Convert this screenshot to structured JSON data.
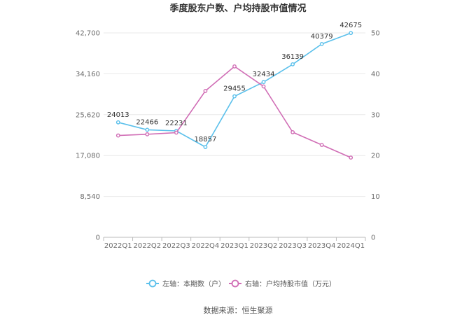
{
  "chart_data": {
    "type": "line",
    "title": "季度股东户数、户均持股市值情况",
    "categories": [
      "2022Q1",
      "2022Q2",
      "2022Q3",
      "2022Q4",
      "2023Q1",
      "2023Q2",
      "2023Q3",
      "2023Q4",
      "2024Q1"
    ],
    "series": [
      {
        "name": "左轴：本期数（户）",
        "axis": "left",
        "color": "#5bc0eb",
        "values": [
          24013,
          22466,
          22231,
          18857,
          29455,
          32434,
          36139,
          40379,
          42675
        ],
        "labels": [
          "24013",
          "22466",
          "22231",
          "18857",
          "29455",
          "32434",
          "36139",
          "40379",
          "42675"
        ]
      },
      {
        "name": "右轴：户均持股市值（万元）",
        "axis": "right",
        "color": "#d06db5",
        "values": [
          24.9,
          25.2,
          25.6,
          35.8,
          41.8,
          36.9,
          25.7,
          22.6,
          19.5
        ]
      }
    ],
    "y_left": {
      "ticks": [
        "0",
        "8,540",
        "17,080",
        "25,620",
        "34,160",
        "42,700"
      ],
      "values": [
        0,
        8540,
        17080,
        25620,
        34160,
        42700
      ],
      "ylim": [
        0,
        42700
      ]
    },
    "y_right": {
      "ticks": [
        "0",
        "10",
        "20",
        "30",
        "40",
        "50"
      ],
      "values": [
        0,
        10,
        20,
        30,
        40,
        50
      ],
      "ylim": [
        0,
        50
      ]
    },
    "grid": true,
    "legend_position": "bottom"
  },
  "source_text": "数据来源：恒生聚源"
}
